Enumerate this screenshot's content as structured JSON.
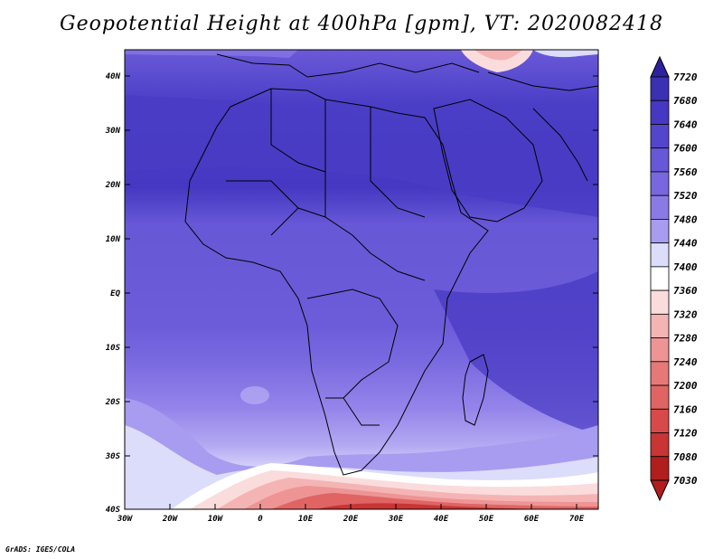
{
  "title": "Geopotential Height at 400hPa [gpm], VT: 2020082418",
  "credit": "GrADS: IGES/COLA",
  "map": {
    "lat_labels": [
      "40N",
      "30N",
      "20N",
      "10N",
      "EQ",
      "10S",
      "20S",
      "30S",
      "40S"
    ],
    "lon_labels": [
      "30W",
      "20W",
      "10W",
      "0",
      "10E",
      "20E",
      "30E",
      "40E",
      "50E",
      "60E",
      "70E"
    ]
  },
  "colorbar": {
    "levels": [
      "7720",
      "7680",
      "7640",
      "7600",
      "7560",
      "7520",
      "7480",
      "7440",
      "7400",
      "7360",
      "7320",
      "7280",
      "7240",
      "7200",
      "7160",
      "7120",
      "7080",
      "7030"
    ],
    "colors": [
      "#2e21a0",
      "#3a30b4",
      "#4638c2",
      "#5446cc",
      "#6658d6",
      "#7867df",
      "#8a7ae6",
      "#a79cf0",
      "#dcdcfb",
      "#ffffff",
      "#fbdcdc",
      "#f5b4b4",
      "#ee9494",
      "#e67878",
      "#e06464",
      "#d84a4a",
      "#c93434",
      "#b01e1e"
    ]
  }
}
